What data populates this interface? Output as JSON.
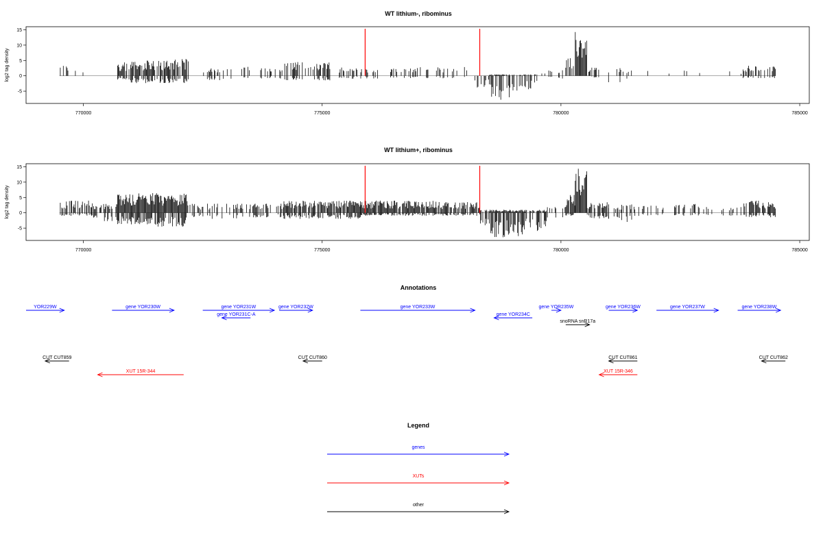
{
  "chart_data": [
    {
      "type": "bar",
      "title": "WT lithium-, ribominus",
      "ylabel": "log2 tag density",
      "xlim": [
        768800,
        785200
      ],
      "ylim": [
        -9,
        16
      ],
      "xticks": [
        770000,
        775000,
        780000,
        785000
      ],
      "yticks": [
        -5,
        0,
        5,
        10,
        15
      ],
      "red_markers": [
        775900,
        778300
      ],
      "segments": [
        {
          "start": 769500,
          "end": 769700,
          "amp": 3.5,
          "neg": 0,
          "density": 0.35
        },
        {
          "start": 769800,
          "end": 770000,
          "amp": 2.5,
          "neg": 0,
          "density": 0.2
        },
        {
          "start": 770300,
          "end": 770500,
          "amp": 0,
          "neg": 2.8,
          "density": 0.1
        },
        {
          "start": 770700,
          "end": 771000,
          "amp": 4.5,
          "neg": 1.5,
          "density": 0.7
        },
        {
          "start": 771000,
          "end": 771700,
          "amp": 5,
          "neg": 2.5,
          "density": 0.8
        },
        {
          "start": 771700,
          "end": 772200,
          "amp": 5.5,
          "neg": 2.5,
          "density": 0.8
        },
        {
          "start": 772500,
          "end": 773500,
          "amp": 3,
          "neg": 1.5,
          "density": 0.25
        },
        {
          "start": 773600,
          "end": 774200,
          "amp": 2.5,
          "neg": 1,
          "density": 0.2
        },
        {
          "start": 774200,
          "end": 775200,
          "amp": 4.5,
          "neg": 1.5,
          "density": 0.6
        },
        {
          "start": 775200,
          "end": 776200,
          "amp": 3,
          "neg": 1,
          "density": 0.35
        },
        {
          "start": 776400,
          "end": 777500,
          "amp": 2.8,
          "neg": 0.8,
          "density": 0.3
        },
        {
          "start": 777500,
          "end": 778200,
          "amp": 3,
          "neg": 0.8,
          "density": 0.3
        },
        {
          "start": 778200,
          "end": 778500,
          "amp": 0,
          "neg": 4,
          "density": 0.5
        },
        {
          "start": 778500,
          "end": 779000,
          "amp": 0.5,
          "neg": 8,
          "density": 0.9
        },
        {
          "start": 779000,
          "end": 779500,
          "amp": 0.5,
          "neg": 5,
          "density": 0.6
        },
        {
          "start": 779600,
          "end": 780100,
          "amp": 2,
          "neg": 1,
          "density": 0.15
        },
        {
          "start": 780100,
          "end": 780300,
          "amp": 6,
          "neg": 0,
          "density": 0.8
        },
        {
          "start": 780300,
          "end": 780550,
          "amp": 14.5,
          "neg": 0,
          "density": 1
        },
        {
          "start": 780550,
          "end": 780800,
          "amp": 3,
          "neg": 0.5,
          "density": 0.4
        },
        {
          "start": 780900,
          "end": 781500,
          "amp": 2.5,
          "neg": 2.5,
          "density": 0.3
        },
        {
          "start": 781800,
          "end": 783000,
          "amp": 2,
          "neg": 0,
          "density": 0.12
        },
        {
          "start": 783500,
          "end": 783800,
          "amp": 1.5,
          "neg": 0,
          "density": 0.1
        },
        {
          "start": 783800,
          "end": 784500,
          "amp": 3.5,
          "neg": 0.8,
          "density": 0.5
        }
      ]
    },
    {
      "type": "bar",
      "title": "WT lithium+, ribominus",
      "ylabel": "log2 tag density",
      "xlim": [
        768800,
        785200
      ],
      "ylim": [
        -9,
        16
      ],
      "xticks": [
        770000,
        775000,
        780000,
        785000
      ],
      "yticks": [
        -5,
        0,
        5,
        10,
        15
      ],
      "red_markers": [
        775900,
        778300
      ],
      "segments": [
        {
          "start": 769500,
          "end": 770200,
          "amp": 4,
          "neg": 1,
          "density": 0.7
        },
        {
          "start": 770200,
          "end": 770700,
          "amp": 3,
          "neg": 3,
          "density": 0.6
        },
        {
          "start": 770700,
          "end": 771500,
          "amp": 6.5,
          "neg": 4,
          "density": 1
        },
        {
          "start": 771500,
          "end": 772200,
          "amp": 6.5,
          "neg": 4.5,
          "density": 1
        },
        {
          "start": 772200,
          "end": 773500,
          "amp": 3,
          "neg": 2,
          "density": 0.45
        },
        {
          "start": 773500,
          "end": 774200,
          "amp": 3,
          "neg": 1.5,
          "density": 0.5
        },
        {
          "start": 774200,
          "end": 775800,
          "amp": 4,
          "neg": 2,
          "density": 0.9
        },
        {
          "start": 775800,
          "end": 777500,
          "amp": 4,
          "neg": 1,
          "density": 0.9
        },
        {
          "start": 777500,
          "end": 778300,
          "amp": 3.5,
          "neg": 1,
          "density": 0.8
        },
        {
          "start": 778300,
          "end": 778500,
          "amp": 1,
          "neg": 5,
          "density": 0.7
        },
        {
          "start": 778500,
          "end": 779200,
          "amp": 1,
          "neg": 8,
          "density": 1
        },
        {
          "start": 779200,
          "end": 779700,
          "amp": 1,
          "neg": 6,
          "density": 0.8
        },
        {
          "start": 779700,
          "end": 780100,
          "amp": 2,
          "neg": 2,
          "density": 0.3
        },
        {
          "start": 780100,
          "end": 780300,
          "amp": 6,
          "neg": 1,
          "density": 0.9
        },
        {
          "start": 780300,
          "end": 780550,
          "amp": 15,
          "neg": 0,
          "density": 1
        },
        {
          "start": 780550,
          "end": 781000,
          "amp": 3.5,
          "neg": 2,
          "density": 0.6
        },
        {
          "start": 781000,
          "end": 781500,
          "amp": 3,
          "neg": 3,
          "density": 0.5
        },
        {
          "start": 781500,
          "end": 783000,
          "amp": 3,
          "neg": 1,
          "density": 0.3
        },
        {
          "start": 783000,
          "end": 783800,
          "amp": 2,
          "neg": 1,
          "density": 0.2
        },
        {
          "start": 783800,
          "end": 784500,
          "amp": 4,
          "neg": 1.5,
          "density": 0.8
        }
      ]
    }
  ],
  "annotations": {
    "title": "Annotations",
    "genes_color": "#0000ff",
    "xuts_color": "#ff0000",
    "other_color": "#000000",
    "features": [
      {
        "label": "YOR229W",
        "start": 768800,
        "end": 769600,
        "dir": "+",
        "kind": "gene",
        "row": 0
      },
      {
        "label": "gene YOR230W",
        "start": 770600,
        "end": 771900,
        "dir": "+",
        "kind": "gene",
        "row": 0
      },
      {
        "label": "gene YOR231W",
        "start": 772500,
        "end": 774000,
        "dir": "+",
        "kind": "gene",
        "row": 0
      },
      {
        "label": "gene YOR231C-A",
        "start": 772900,
        "end": 773500,
        "dir": "-",
        "kind": "gene",
        "row": 1
      },
      {
        "label": "gene YOR232W",
        "start": 774100,
        "end": 774800,
        "dir": "+",
        "kind": "gene",
        "row": 0
      },
      {
        "label": "gene YOR233W",
        "start": 775800,
        "end": 778200,
        "dir": "+",
        "kind": "gene",
        "row": 0
      },
      {
        "label": "gene YOR234C",
        "start": 778600,
        "end": 779400,
        "dir": "-",
        "kind": "gene",
        "row": 1
      },
      {
        "label": "gene YOR235W",
        "start": 779800,
        "end": 780000,
        "dir": "+",
        "kind": "gene",
        "row": 0
      },
      {
        "label": "snoRNA snR17a",
        "start": 780100,
        "end": 780600,
        "dir": "+",
        "kind": "other",
        "row": 2
      },
      {
        "label": "gene YOR236W",
        "start": 781000,
        "end": 781600,
        "dir": "+",
        "kind": "gene",
        "row": 0
      },
      {
        "label": "gene YOR237W",
        "start": 782000,
        "end": 783300,
        "dir": "+",
        "kind": "gene",
        "row": 0
      },
      {
        "label": "gene YOR238W",
        "start": 783700,
        "end": 784600,
        "dir": "+",
        "kind": "gene",
        "row": 0
      },
      {
        "label": "CUT CUT859",
        "start": 769200,
        "end": 769700,
        "dir": "-",
        "kind": "other",
        "row": 3
      },
      {
        "label": "CUT CUT860",
        "start": 774600,
        "end": 775000,
        "dir": "-",
        "kind": "other",
        "row": 3
      },
      {
        "label": "CUT CUT861",
        "start": 781000,
        "end": 781600,
        "dir": "-",
        "kind": "other",
        "row": 3
      },
      {
        "label": "CUT CUT862",
        "start": 784200,
        "end": 784700,
        "dir": "-",
        "kind": "other",
        "row": 3
      },
      {
        "label": "XUT 15R-344",
        "start": 770300,
        "end": 772100,
        "dir": "-",
        "kind": "xut",
        "row": 4
      },
      {
        "label": "XUT 15R-346",
        "start": 780800,
        "end": 781600,
        "dir": "-",
        "kind": "xut",
        "row": 4
      }
    ]
  },
  "legend": {
    "title": "Legend",
    "items": [
      {
        "label": "genes",
        "color": "#0000ff"
      },
      {
        "label": "XUTs",
        "color": "#ff0000"
      },
      {
        "label": "other",
        "color": "#000000"
      }
    ]
  }
}
